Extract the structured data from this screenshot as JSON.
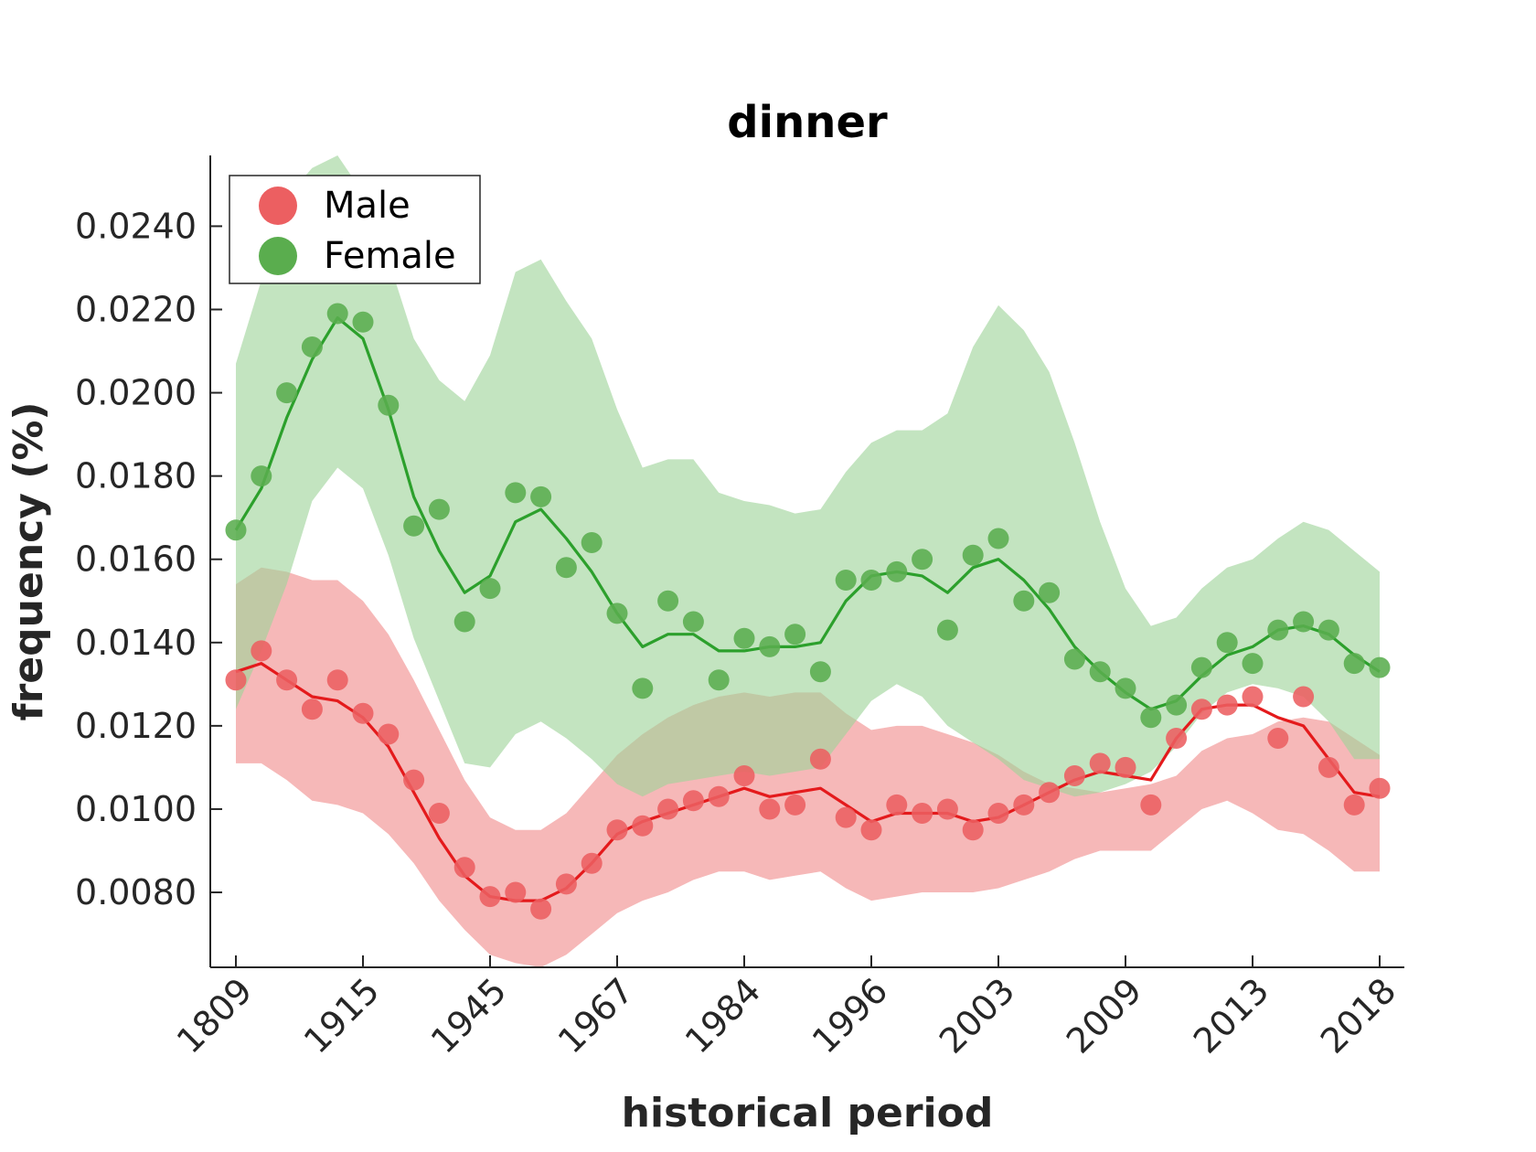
{
  "chart_data": {
    "type": "line",
    "title": "dinner",
    "xlabel": "historical period",
    "ylabel": "frequency (%)",
    "x_tick_labels": [
      "1809",
      "1915",
      "1945",
      "1967",
      "1984",
      "1996",
      "2003",
      "2009",
      "2013",
      "2018"
    ],
    "y_ticks": [
      0.008,
      0.01,
      0.012,
      0.014,
      0.016,
      0.018,
      0.02,
      0.022,
      0.024
    ],
    "y_tick_labels": [
      "0.0080",
      "0.0100",
      "0.0120",
      "0.0140",
      "0.0160",
      "0.0180",
      "0.0200",
      "0.0220",
      "0.0240"
    ],
    "ylim": [
      0.0062,
      0.0257
    ],
    "x_count": 46,
    "legend": {
      "position": "top-left"
    },
    "grid": false,
    "series": [
      {
        "name": "Male",
        "color": "#e41a1c",
        "dot_color": "#ec5f61",
        "band_color": "#f08c8d",
        "points": [
          0.0131,
          0.0138,
          0.0131,
          0.0124,
          0.0131,
          0.0123,
          0.0118,
          0.0107,
          0.0099,
          0.0086,
          0.0079,
          0.008,
          0.0076,
          0.0082,
          0.0087,
          0.0095,
          0.0096,
          0.01,
          0.0102,
          0.0103,
          0.0108,
          0.01,
          0.0101,
          0.0112,
          0.0098,
          0.0095,
          0.0101,
          0.0099,
          0.01,
          0.0095,
          0.0099,
          0.0101,
          0.0104,
          0.0108,
          0.0111,
          0.011,
          0.0101,
          0.0117,
          0.0124,
          0.0125,
          0.0127,
          0.0117,
          0.0127,
          0.011,
          0.0101,
          0.0105
        ],
        "line": [
          0.0133,
          0.0135,
          0.0131,
          0.0127,
          0.0126,
          0.0122,
          0.0115,
          0.0104,
          0.0093,
          0.0084,
          0.0079,
          0.0078,
          0.0078,
          0.0081,
          0.0087,
          0.0094,
          0.0097,
          0.0099,
          0.0101,
          0.0103,
          0.0105,
          0.0103,
          0.0104,
          0.0105,
          0.0101,
          0.0097,
          0.0099,
          0.0099,
          0.0099,
          0.0097,
          0.0098,
          0.0101,
          0.0104,
          0.0107,
          0.0109,
          0.0108,
          0.0107,
          0.0117,
          0.0124,
          0.0125,
          0.0125,
          0.0122,
          0.012,
          0.0112,
          0.0104,
          0.0103
        ],
        "band_upper": [
          0.0154,
          0.0158,
          0.0157,
          0.0155,
          0.0155,
          0.015,
          0.0142,
          0.0131,
          0.0119,
          0.0107,
          0.0098,
          0.0095,
          0.0095,
          0.0099,
          0.0106,
          0.0113,
          0.0118,
          0.0122,
          0.0125,
          0.0127,
          0.0128,
          0.0127,
          0.0128,
          0.0128,
          0.0123,
          0.0119,
          0.012,
          0.012,
          0.0118,
          0.0116,
          0.0113,
          0.0109,
          0.0106,
          0.0105,
          0.0104,
          0.0105,
          0.0106,
          0.0108,
          0.0114,
          0.0117,
          0.0118,
          0.0121,
          0.0122,
          0.0121,
          0.0117,
          0.0113
        ],
        "band_lower": [
          0.0111,
          0.0111,
          0.0107,
          0.0102,
          0.0101,
          0.0099,
          0.0094,
          0.0087,
          0.0078,
          0.0071,
          0.0065,
          0.0063,
          0.0062,
          0.0065,
          0.007,
          0.0075,
          0.0078,
          0.008,
          0.0083,
          0.0085,
          0.0085,
          0.0083,
          0.0084,
          0.0085,
          0.0081,
          0.0078,
          0.0079,
          0.008,
          0.008,
          0.008,
          0.0081,
          0.0083,
          0.0085,
          0.0088,
          0.009,
          0.009,
          0.009,
          0.0095,
          0.01,
          0.0102,
          0.0099,
          0.0095,
          0.0094,
          0.009,
          0.0085,
          0.0085
        ]
      },
      {
        "name": "Female",
        "color": "#2ca02c",
        "dot_color": "#5aad4e",
        "band_color": "#9ed49a",
        "points": [
          0.0167,
          0.018,
          0.02,
          0.0211,
          0.0219,
          0.0217,
          0.0197,
          0.0168,
          0.0172,
          0.0145,
          0.0153,
          0.0176,
          0.0175,
          0.0158,
          0.0164,
          0.0147,
          0.0129,
          0.015,
          0.0145,
          0.0131,
          0.0141,
          0.0139,
          0.0142,
          0.0133,
          0.0155,
          0.0155,
          0.0157,
          0.016,
          0.0143,
          0.0161,
          0.0165,
          0.015,
          0.0152,
          0.0136,
          0.0133,
          0.0129,
          0.0122,
          0.0125,
          0.0134,
          0.014,
          0.0135,
          0.0143,
          0.0145,
          0.0143,
          0.0135,
          0.0134
        ],
        "line": [
          0.0167,
          0.0177,
          0.0194,
          0.0208,
          0.0218,
          0.0213,
          0.0196,
          0.0175,
          0.0162,
          0.0152,
          0.0156,
          0.0169,
          0.0172,
          0.0165,
          0.0157,
          0.0147,
          0.0139,
          0.0142,
          0.0142,
          0.0138,
          0.0138,
          0.0139,
          0.0139,
          0.014,
          0.015,
          0.0156,
          0.0157,
          0.0156,
          0.0152,
          0.0158,
          0.016,
          0.0155,
          0.0148,
          0.0139,
          0.0133,
          0.0128,
          0.0124,
          0.0126,
          0.0132,
          0.0137,
          0.0139,
          0.0143,
          0.0144,
          0.0142,
          0.0137,
          0.0133
        ],
        "band_upper": [
          0.0207,
          0.0227,
          0.0247,
          0.0254,
          0.0257,
          0.0248,
          0.0232,
          0.0213,
          0.0203,
          0.0198,
          0.0209,
          0.0229,
          0.0232,
          0.0222,
          0.0213,
          0.0196,
          0.0182,
          0.0184,
          0.0184,
          0.0176,
          0.0174,
          0.0173,
          0.0171,
          0.0172,
          0.0181,
          0.0188,
          0.0191,
          0.0191,
          0.0195,
          0.0211,
          0.0221,
          0.0215,
          0.0205,
          0.0188,
          0.0169,
          0.0153,
          0.0144,
          0.0146,
          0.0153,
          0.0158,
          0.016,
          0.0165,
          0.0169,
          0.0167,
          0.0162,
          0.0157
        ],
        "band_lower": [
          0.0124,
          0.0138,
          0.0154,
          0.0174,
          0.0182,
          0.0177,
          0.0161,
          0.0141,
          0.0126,
          0.0111,
          0.011,
          0.0118,
          0.0121,
          0.0117,
          0.0112,
          0.0106,
          0.0103,
          0.0106,
          0.0107,
          0.0108,
          0.0109,
          0.0108,
          0.0109,
          0.011,
          0.0118,
          0.0126,
          0.013,
          0.0127,
          0.012,
          0.0116,
          0.0112,
          0.0107,
          0.0105,
          0.0103,
          0.0104,
          0.0106,
          0.0109,
          0.0115,
          0.0123,
          0.0128,
          0.013,
          0.0129,
          0.0127,
          0.0121,
          0.0112,
          0.0112
        ]
      }
    ]
  }
}
